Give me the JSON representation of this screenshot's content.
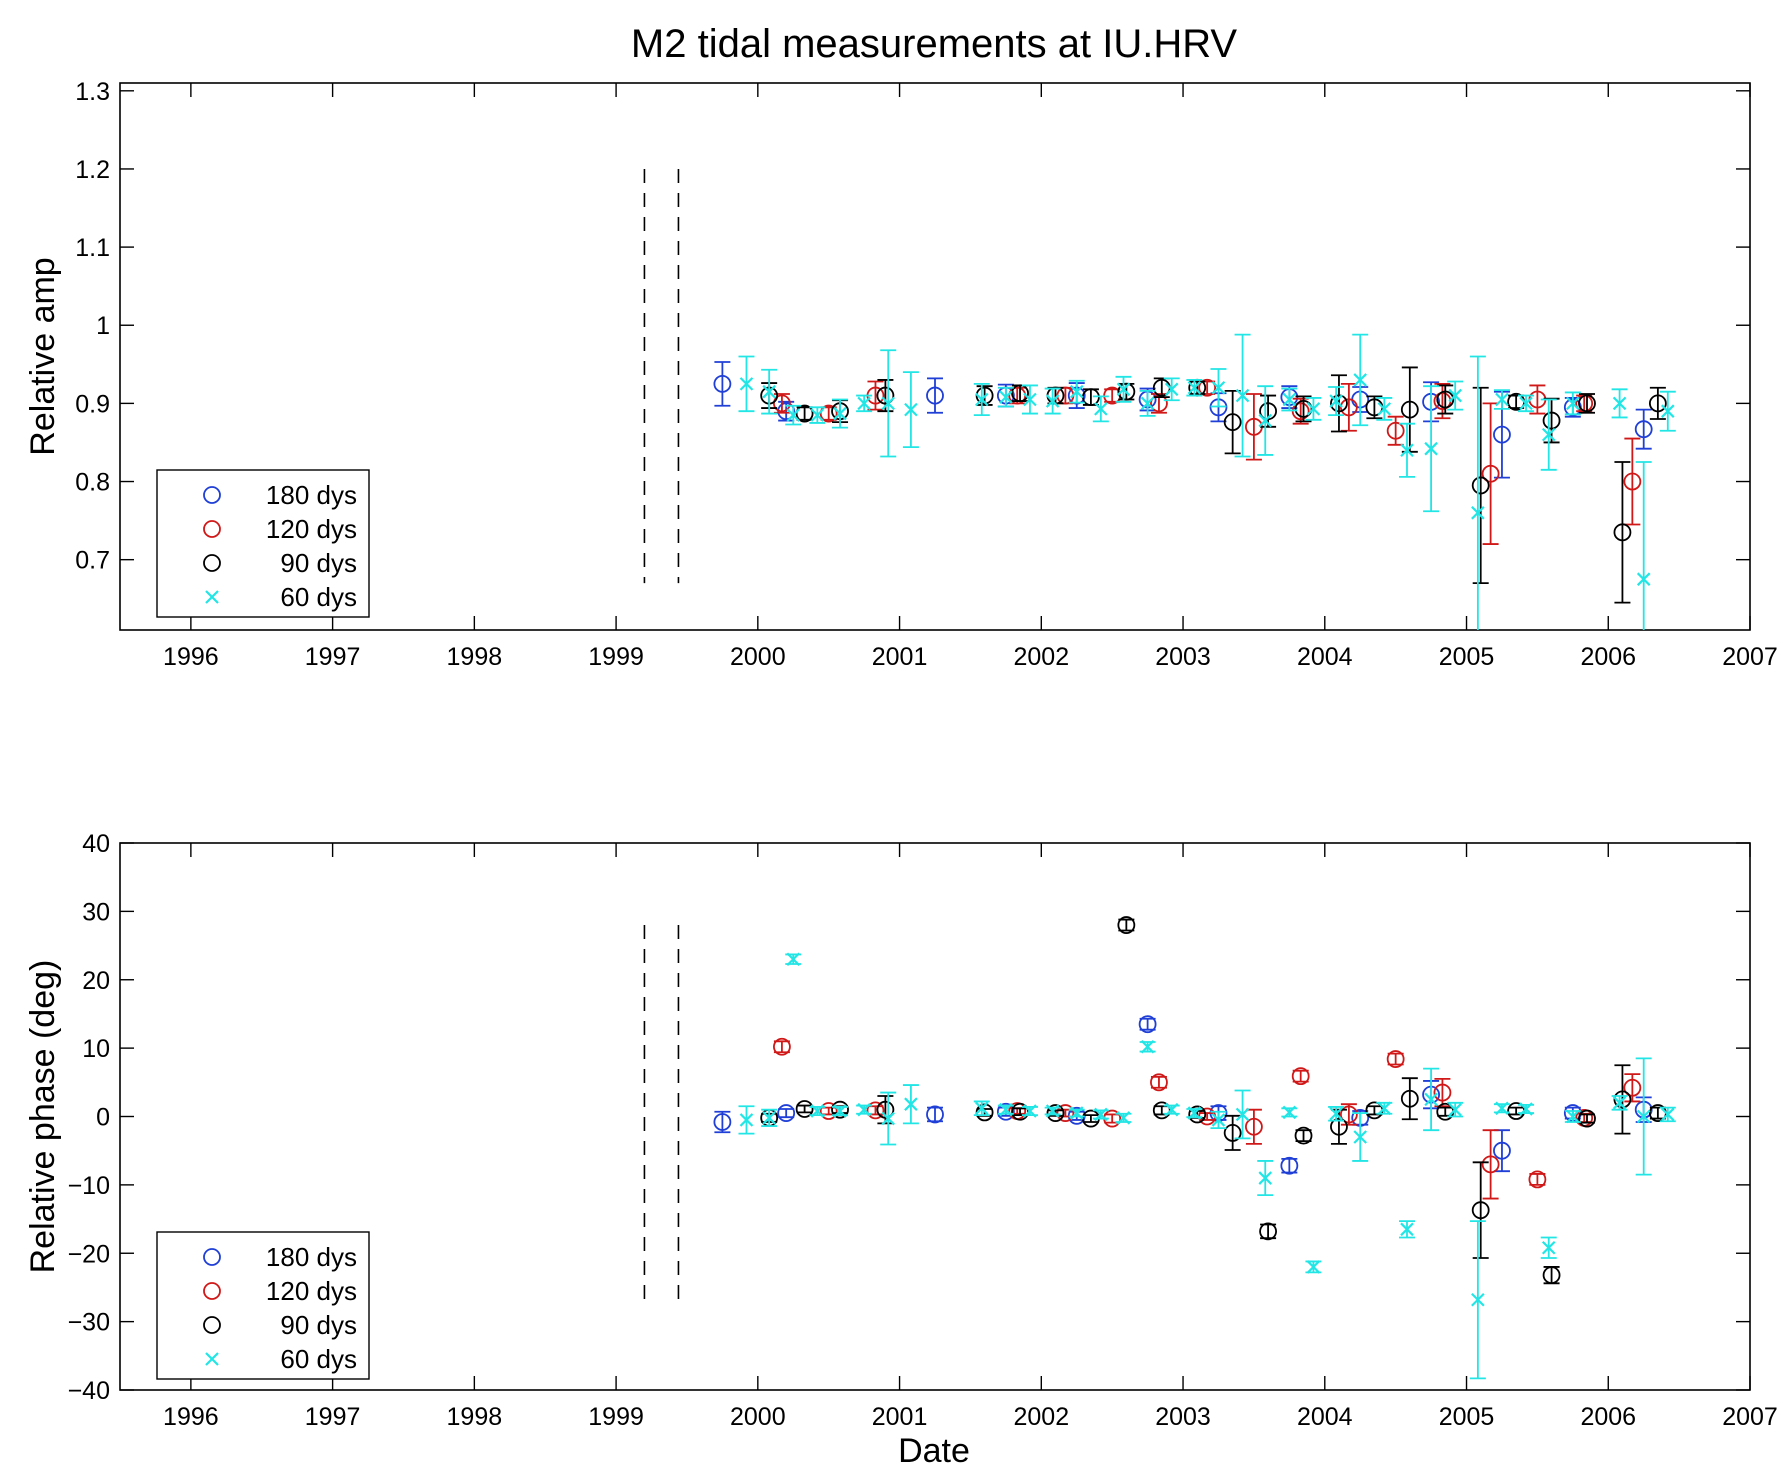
{
  "figure": {
    "title": "M2 tidal measurements at IU.HRV",
    "xlabel": "Date"
  },
  "chart_data": [
    {
      "type": "scatter",
      "ylabel": "Relative amp",
      "xlim": [
        1995.5,
        2007
      ],
      "ylim": [
        0.61,
        1.31
      ],
      "xticks": [
        1996,
        1997,
        1998,
        1999,
        2000,
        2001,
        2002,
        2003,
        2004,
        2005,
        2006,
        2007
      ],
      "yticks": [
        0.7,
        0.8,
        0.9,
        1,
        1.1,
        1.2,
        1.3
      ],
      "ytick_labels": [
        "0.7",
        "0.8",
        "0.9",
        "1",
        "1.1",
        "1.2",
        "1.3"
      ],
      "vlines": [
        {
          "x": 1999.2,
          "y0": 0.67,
          "y1": 1.2
        },
        {
          "x": 1999.44,
          "y0": 0.67,
          "y1": 1.2
        }
      ],
      "legend": {
        "position": "bottom-left"
      },
      "grid": false,
      "series": [
        {
          "name": "180 dys",
          "marker": "circle",
          "color": "#1f3fd6",
          "x": [
            1999.75,
            2000.2,
            2001.25,
            2001.75,
            2002.25,
            2002.75,
            2003.25,
            2003.75,
            2004.25,
            2004.75,
            2005.25,
            2005.75,
            2006.25
          ],
          "y": [
            0.925,
            0.89,
            0.91,
            0.91,
            0.91,
            0.905,
            0.895,
            0.908,
            0.905,
            0.902,
            0.86,
            0.895,
            0.867
          ],
          "err": [
            0.028,
            0.012,
            0.022,
            0.014,
            0.016,
            0.014,
            0.018,
            0.014,
            0.016,
            0.025,
            0.055,
            0.012,
            0.025
          ]
        },
        {
          "name": "120 dys",
          "marker": "circle",
          "color": "#d01818",
          "x": [
            2000.17,
            2000.5,
            2000.83,
            2001.83,
            2002.17,
            2002.5,
            2002.83,
            2003.17,
            2003.5,
            2003.83,
            2004.17,
            2004.5,
            2004.83,
            2005.17,
            2005.5,
            2005.83,
            2006.17
          ],
          "y": [
            0.9,
            0.887,
            0.91,
            0.91,
            0.91,
            0.91,
            0.9,
            0.92,
            0.87,
            0.89,
            0.895,
            0.865,
            0.903,
            0.81,
            0.905,
            0.9,
            0.8
          ],
          "err": [
            0.012,
            0.008,
            0.018,
            0.01,
            0.01,
            0.008,
            0.012,
            0.008,
            0.042,
            0.016,
            0.03,
            0.018,
            0.022,
            0.09,
            0.018,
            0.01,
            0.055
          ]
        },
        {
          "name": "90 dys",
          "marker": "circle",
          "color": "#000000",
          "x": [
            2000.08,
            2000.33,
            2000.58,
            2000.9,
            2001.6,
            2001.85,
            2002.1,
            2002.35,
            2002.6,
            2002.85,
            2003.1,
            2003.35,
            2003.6,
            2003.85,
            2004.1,
            2004.35,
            2004.6,
            2004.85,
            2005.1,
            2005.35,
            2005.6,
            2005.85,
            2006.1,
            2006.35
          ],
          "y": [
            0.91,
            0.887,
            0.89,
            0.91,
            0.91,
            0.913,
            0.91,
            0.908,
            0.915,
            0.92,
            0.92,
            0.876,
            0.89,
            0.893,
            0.9,
            0.895,
            0.892,
            0.905,
            0.795,
            0.902,
            0.878,
            0.9,
            0.735,
            0.9
          ],
          "err": [
            0.016,
            0.008,
            0.014,
            0.02,
            0.012,
            0.01,
            0.01,
            0.01,
            0.01,
            0.012,
            0.008,
            0.04,
            0.02,
            0.016,
            0.036,
            0.014,
            0.054,
            0.018,
            0.125,
            0.008,
            0.028,
            0.012,
            0.09,
            0.02
          ]
        },
        {
          "name": "60 dys",
          "marker": "x",
          "color": "#22e5e5",
          "x": [
            1999.92,
            2000.08,
            2000.25,
            2000.42,
            2000.58,
            2000.75,
            2000.92,
            2001.08,
            2001.58,
            2001.75,
            2001.92,
            2002.08,
            2002.25,
            2002.42,
            2002.58,
            2002.75,
            2002.92,
            2003.08,
            2003.25,
            2003.42,
            2003.58,
            2003.75,
            2003.92,
            2004.08,
            2004.25,
            2004.42,
            2004.58,
            2004.75,
            2004.92,
            2005.08,
            2005.25,
            2005.42,
            2005.58,
            2005.75,
            2006.08,
            2006.25,
            2006.42
          ],
          "y": [
            0.925,
            0.915,
            0.885,
            0.885,
            0.887,
            0.9,
            0.9,
            0.892,
            0.905,
            0.908,
            0.905,
            0.903,
            0.915,
            0.893,
            0.918,
            0.9,
            0.918,
            0.92,
            0.92,
            0.91,
            0.878,
            0.905,
            0.893,
            0.903,
            0.93,
            0.893,
            0.84,
            0.842,
            0.91,
            0.76,
            0.905,
            0.9,
            0.86,
            0.9,
            0.9,
            0.675,
            0.89
          ],
          "err": [
            0.035,
            0.028,
            0.012,
            0.01,
            0.018,
            0.01,
            0.068,
            0.048,
            0.02,
            0.012,
            0.018,
            0.016,
            0.014,
            0.016,
            0.016,
            0.016,
            0.014,
            0.01,
            0.024,
            0.078,
            0.044,
            0.014,
            0.014,
            0.018,
            0.058,
            0.014,
            0.034,
            0.08,
            0.018,
            0.2,
            0.012,
            0.01,
            0.045,
            0.014,
            0.018,
            0.15,
            0.025
          ]
        }
      ]
    },
    {
      "type": "scatter",
      "ylabel": "Relative phase (deg)",
      "xlim": [
        1995.5,
        2007
      ],
      "ylim": [
        -40,
        40
      ],
      "xticks": [
        1996,
        1997,
        1998,
        1999,
        2000,
        2001,
        2002,
        2003,
        2004,
        2005,
        2006,
        2007
      ],
      "yticks": [
        -40,
        -30,
        -20,
        -10,
        0,
        10,
        20,
        30,
        40
      ],
      "ytick_labels": [
        "−40",
        "−30",
        "−20",
        "−10",
        "0",
        "10",
        "20",
        "30",
        "40"
      ],
      "vlines": [
        {
          "x": 1999.2,
          "y0": -27,
          "y1": 28
        },
        {
          "x": 1999.44,
          "y0": -27,
          "y1": 28
        }
      ],
      "legend": {
        "position": "bottom-left"
      },
      "grid": false,
      "series": [
        {
          "name": "180 dys",
          "marker": "circle",
          "color": "#1f3fd6",
          "x": [
            1999.75,
            2000.2,
            2001.25,
            2001.75,
            2002.25,
            2002.75,
            2003.25,
            2003.75,
            2004.25,
            2004.75,
            2005.25,
            2005.75,
            2006.25
          ],
          "y": [
            -0.8,
            0.5,
            0.3,
            0.7,
            0.1,
            13.5,
            0.5,
            -7.2,
            -0.2,
            3.2,
            -5,
            0.5,
            1
          ],
          "err": [
            1.5,
            0.6,
            1,
            0.6,
            0.6,
            0.8,
            1,
            1,
            1,
            2,
            3,
            0.8,
            1.8
          ]
        },
        {
          "name": "120 dys",
          "marker": "circle",
          "color": "#d01818",
          "x": [
            2000.17,
            2000.5,
            2000.83,
            2001.83,
            2002.17,
            2002.5,
            2002.83,
            2003.17,
            2003.5,
            2003.83,
            2004.17,
            2004.5,
            2004.83,
            2005.17,
            2005.5,
            2005.83,
            2006.17
          ],
          "y": [
            10.2,
            0.8,
            0.9,
            0.8,
            0.5,
            -0.3,
            5,
            0,
            -1.5,
            5.9,
            0.3,
            8.4,
            3.5,
            -7,
            -9.2,
            -0.2,
            4.2
          ],
          "err": [
            0.8,
            0.5,
            0.6,
            0.4,
            0.5,
            0.6,
            0.8,
            0.5,
            2.5,
            0.8,
            1.5,
            0.8,
            2,
            5,
            0.8,
            0.6,
            2
          ]
        },
        {
          "name": "90 dys",
          "marker": "circle",
          "color": "#000000",
          "x": [
            2000.08,
            2000.33,
            2000.58,
            2000.9,
            2001.6,
            2001.85,
            2002.1,
            2002.35,
            2002.6,
            2002.85,
            2003.1,
            2003.35,
            2003.6,
            2003.85,
            2004.1,
            2004.35,
            2004.6,
            2004.85,
            2005.1,
            2005.35,
            2005.6,
            2005.85,
            2006.1,
            2006.35
          ],
          "y": [
            -0.2,
            1.1,
            1,
            1,
            0.6,
            0.7,
            0.5,
            -0.3,
            28,
            0.9,
            0.3,
            -2.4,
            -16.8,
            -2.8,
            -1.5,
            0.9,
            2.6,
            0.7,
            -13.7,
            0.8,
            -23.2,
            -0.3,
            2.5,
            0.5
          ],
          "err": [
            0.6,
            0.5,
            0.5,
            2,
            0.5,
            0.5,
            0.4,
            0.5,
            0.8,
            0.6,
            0.5,
            2.5,
            1,
            0.8,
            2.5,
            0.6,
            3,
            0.6,
            7,
            0.5,
            1.2,
            0.6,
            5,
            0.8
          ]
        },
        {
          "name": "60 dys",
          "marker": "x",
          "color": "#22e5e5",
          "x": [
            1999.92,
            2000.08,
            2000.25,
            2000.42,
            2000.58,
            2000.75,
            2000.92,
            2001.08,
            2001.58,
            2001.75,
            2001.92,
            2002.08,
            2002.25,
            2002.42,
            2002.58,
            2002.75,
            2002.92,
            2003.08,
            2003.25,
            2003.42,
            2003.58,
            2003.75,
            2003.92,
            2004.08,
            2004.25,
            2004.42,
            2004.58,
            2004.75,
            2004.92,
            2005.08,
            2005.25,
            2005.42,
            2005.58,
            2005.75,
            2006.08,
            2006.25,
            2006.42
          ],
          "y": [
            -0.5,
            -0.2,
            23,
            0.8,
            0.8,
            1,
            -0.3,
            1.8,
            1.2,
            1,
            0.8,
            0.8,
            0.5,
            0.3,
            -0.2,
            10.2,
            1,
            0.5,
            -0.5,
            0.3,
            -9,
            0.6,
            -22,
            0.4,
            -3,
            1.2,
            -16.5,
            2.5,
            1,
            -26.8,
            1.2,
            1.1,
            -19.2,
            0,
            2,
            0,
            0.3
          ],
          "err": [
            2,
            1.2,
            0.7,
            0.6,
            0.6,
            0.6,
            3.8,
            2.8,
            1,
            0.6,
            0.6,
            0.5,
            0.5,
            0.6,
            0.6,
            0.7,
            0.6,
            0.6,
            1.2,
            3.5,
            2.5,
            0.6,
            0.8,
            1,
            3.5,
            0.8,
            1.2,
            4.5,
            1,
            11.5,
            0.6,
            0.6,
            1.5,
            0.8,
            1,
            8.5,
            1
          ]
        }
      ]
    }
  ]
}
